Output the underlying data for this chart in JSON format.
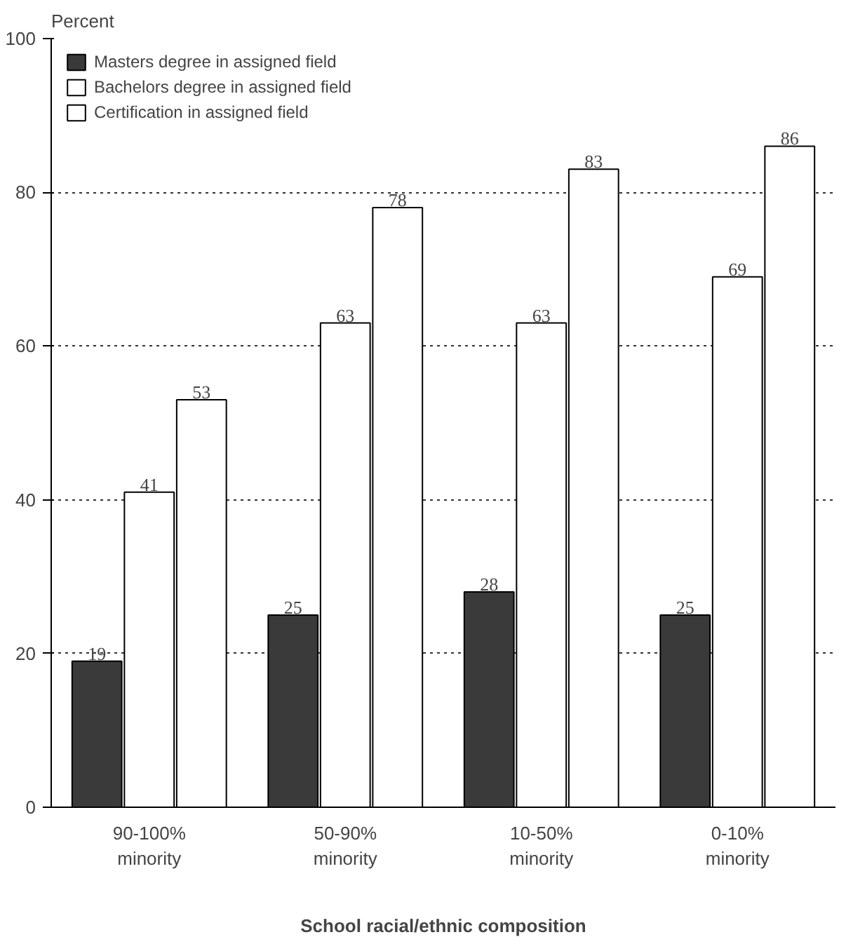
{
  "chart_data": {
    "type": "bar",
    "ylabel": "Percent",
    "xlabel": "School racial/ethnic composition",
    "categories": [
      "90-100%\nminority",
      "50-90%\nminority",
      "10-50%\nminority",
      "0-10%\nminority"
    ],
    "series": [
      {
        "name": "Masters degree in assigned field",
        "color": "#3a3a3a",
        "values": [
          19,
          25,
          28,
          25
        ]
      },
      {
        "name": "Bachelors degree in assigned field",
        "color": "#ffffff",
        "values": [
          41,
          63,
          63,
          69
        ]
      },
      {
        "name": "Certification in assigned field",
        "color": "#ffffff",
        "values": [
          53,
          78,
          83,
          86
        ]
      }
    ],
    "ylim": [
      0,
      100
    ],
    "yticks": [
      0,
      20,
      40,
      60,
      80,
      100
    ],
    "grid": "y",
    "legend": "top left",
    "data_labels": true
  }
}
